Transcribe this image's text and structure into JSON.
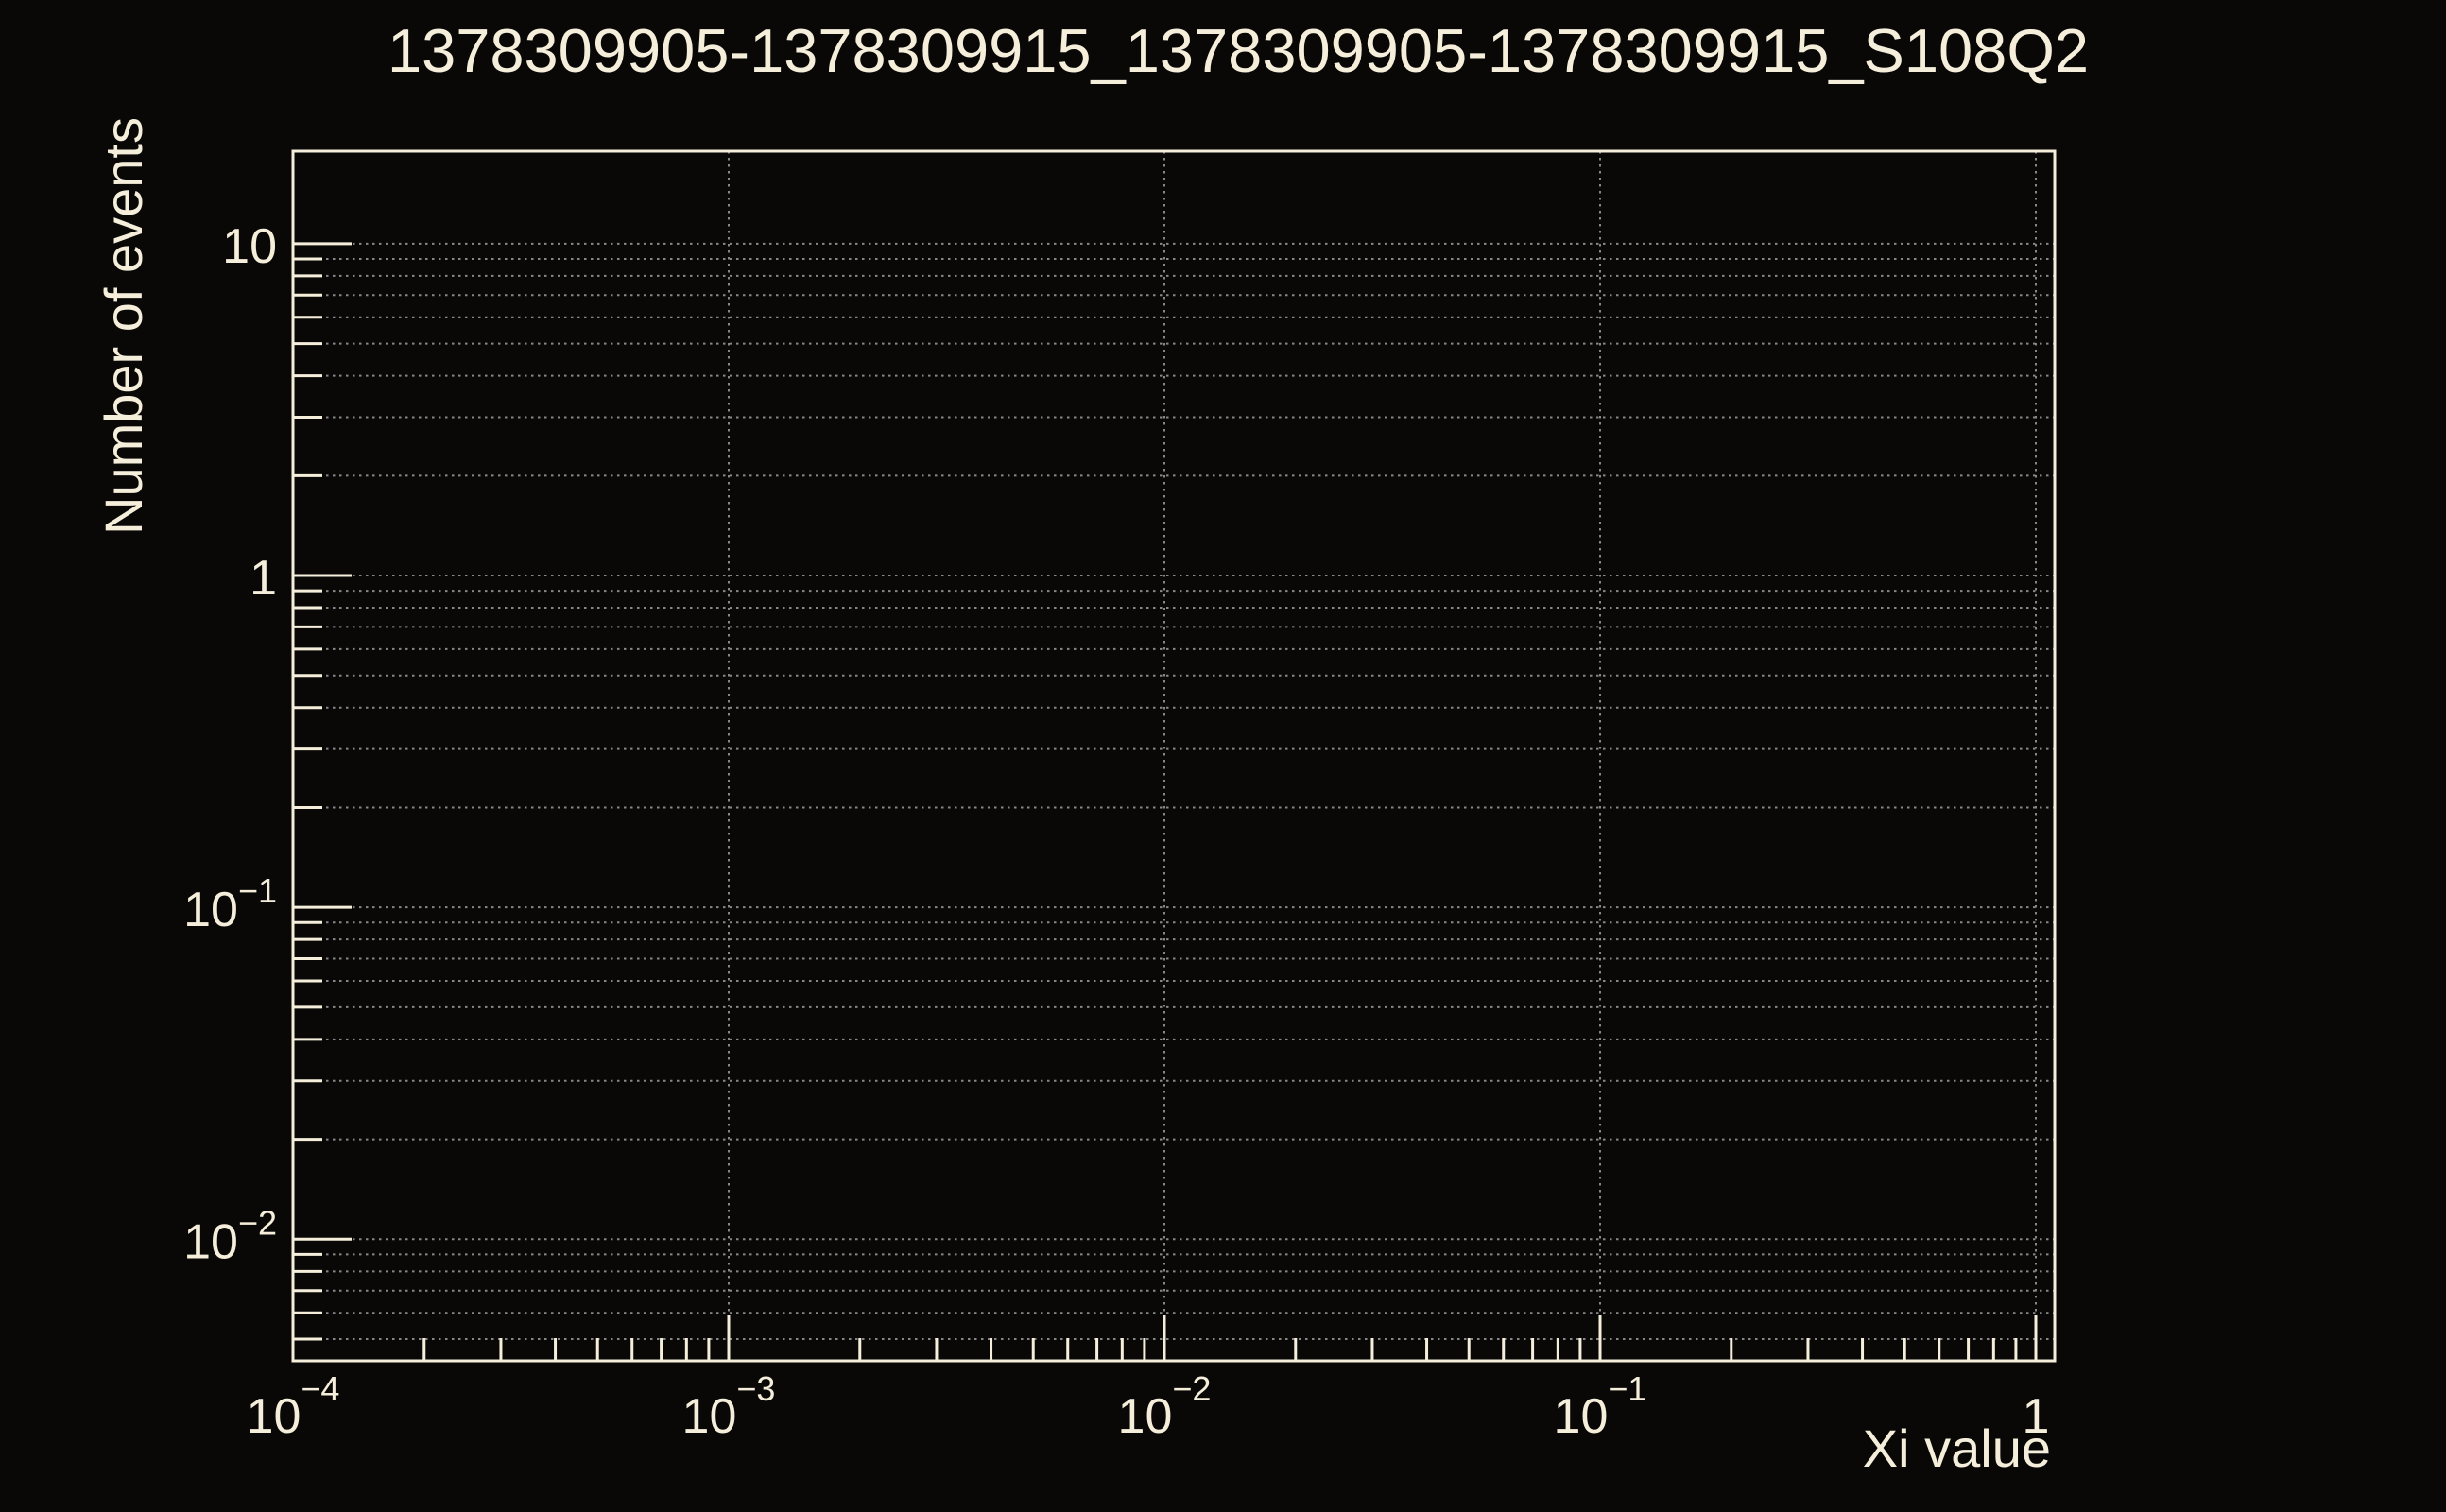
{
  "title": "1378309905-1378309915_1378309905-1378309915_S108Q2",
  "colors": {
    "background": "#090807",
    "foreground": "#f5eeda",
    "grid": "#878787"
  },
  "chart_data": {
    "type": "line",
    "title": "1378309905-1378309915_1378309905-1378309915_S108Q2",
    "xlabel": "Xi value",
    "ylabel": "Number of events",
    "x_scale": "log",
    "y_scale": "log",
    "xlim": [
      0.0001,
      1.105
    ],
    "ylim": [
      0.0043,
      19
    ],
    "grid": "dotted",
    "legend": false,
    "series": [],
    "x_ticks": [
      {
        "value": 0.0001,
        "base": "10",
        "exp": "−4"
      },
      {
        "value": 0.001,
        "base": "10",
        "exp": "−3"
      },
      {
        "value": 0.01,
        "base": "10",
        "exp": "−2"
      },
      {
        "value": 0.1,
        "base": "10",
        "exp": "−1"
      },
      {
        "value": 1,
        "base": "1",
        "exp": ""
      }
    ],
    "y_ticks": [
      {
        "value": 10,
        "base": "10",
        "exp": ""
      },
      {
        "value": 1,
        "base": "1",
        "exp": ""
      },
      {
        "value": 0.1,
        "base": "10",
        "exp": "−1"
      },
      {
        "value": 0.01,
        "base": "10",
        "exp": "−2"
      }
    ]
  }
}
